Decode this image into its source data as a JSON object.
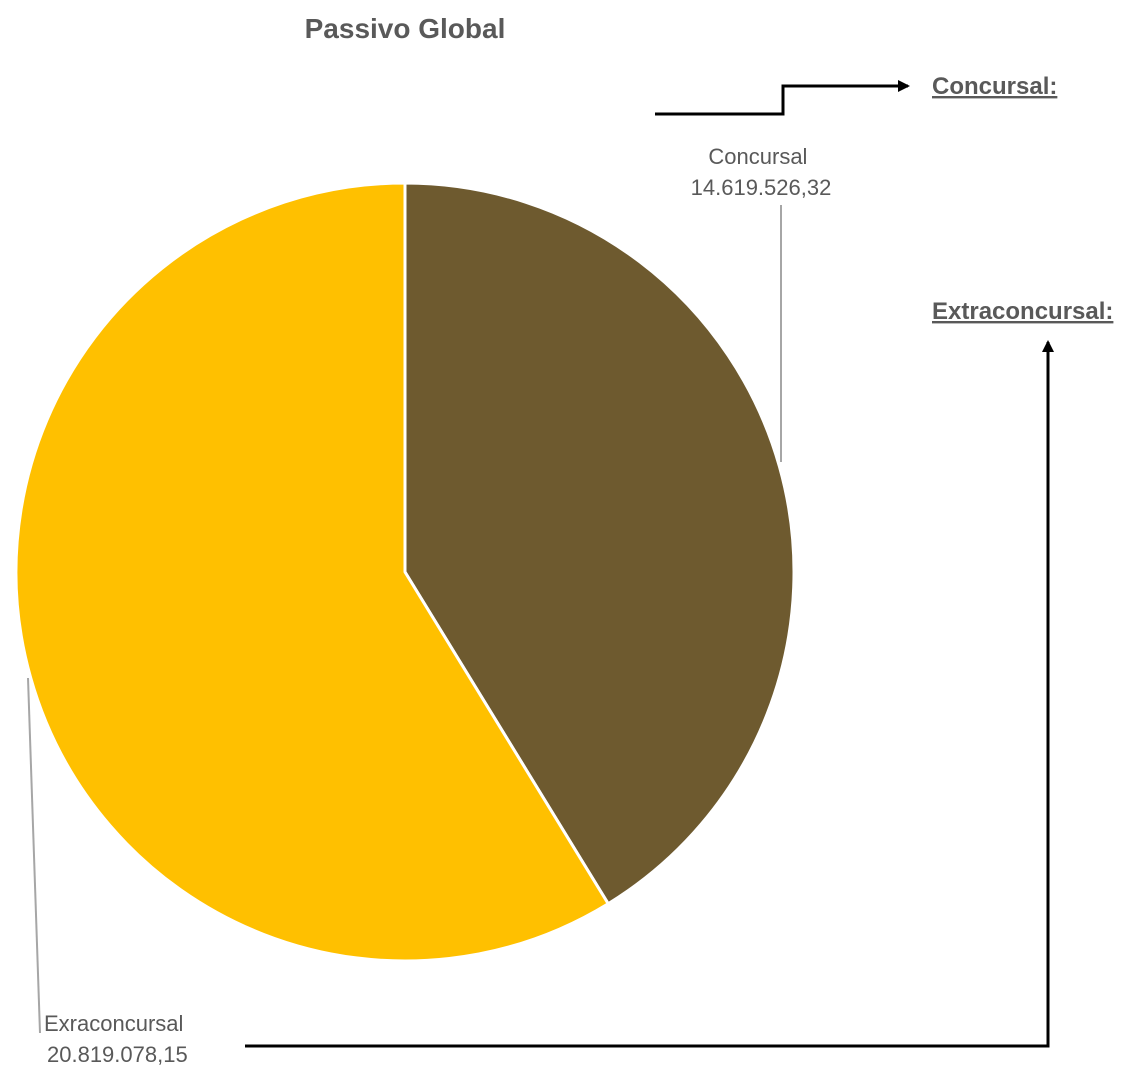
{
  "chart_data": {
    "type": "pie",
    "title": "Passivo Global",
    "categories": [
      "Concursal",
      "Exraconcursal"
    ],
    "values": [
      14619526.32,
      20819078.15
    ],
    "value_labels": [
      "14.619.526,32",
      "20.819.078,15"
    ],
    "colors": [
      "#6E5A2F",
      "#FFC000"
    ],
    "legend": "none",
    "data_labels": "outside-with-leader-lines"
  },
  "annotations": {
    "concursal_label": "Concursal:",
    "extraconcursal_label": "Extraconcursal:",
    "arrow_color": "#000000",
    "leader_color": "#A6A6A6"
  }
}
